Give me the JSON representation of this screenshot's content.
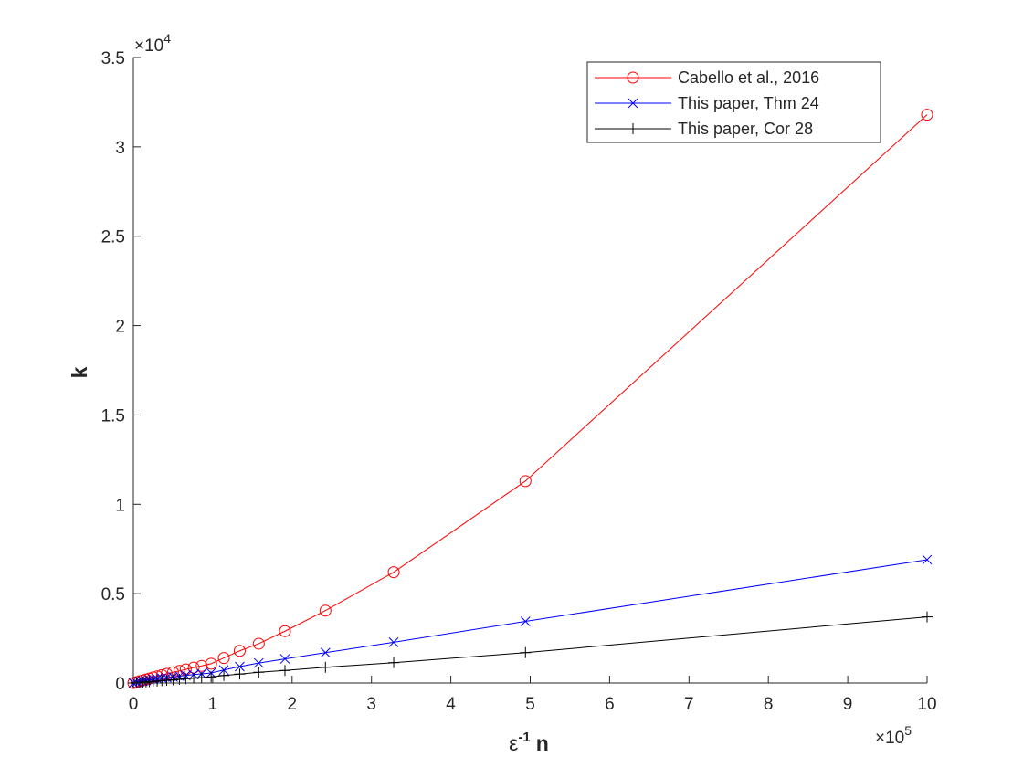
{
  "chart_data": {
    "type": "line",
    "title": "",
    "xlabel": "n",
    "xlabel_prefix": "ε",
    "xlabel_superscript": "-1",
    "ylabel": "k",
    "xlim": [
      0,
      1000000
    ],
    "ylim": [
      0,
      35000
    ],
    "x_multiplier": {
      "base": "×10",
      "exp": "5"
    },
    "y_multiplier": {
      "base": "×10",
      "exp": "4"
    },
    "x_ticks": [
      0,
      100000,
      200000,
      300000,
      400000,
      500000,
      600000,
      700000,
      800000,
      900000,
      1000000
    ],
    "x_tick_labels": [
      "0",
      "1",
      "2",
      "3",
      "4",
      "5",
      "6",
      "7",
      "8",
      "9",
      "10"
    ],
    "y_ticks": [
      0,
      5000,
      10000,
      15000,
      20000,
      25000,
      30000,
      35000
    ],
    "y_tick_labels": [
      "0",
      "0.5",
      "1",
      "1.5",
      "2",
      "2.5",
      "3",
      "3.5"
    ],
    "grid": false,
    "legend_position": "top-right",
    "series": [
      {
        "name": "Cabello et al., 2016",
        "color": "#ff0000",
        "marker": "circle",
        "x": [
          0,
          4000,
          8000,
          12000,
          16000,
          20000,
          25000,
          30000,
          36000,
          42000,
          50000,
          58000,
          66000,
          76000,
          86000,
          98000,
          114000,
          134000,
          158000,
          191000,
          242000,
          328000,
          494000,
          1000000
        ],
        "y": [
          0,
          50,
          100,
          150,
          200,
          250,
          310,
          370,
          440,
          510,
          600,
          680,
          760,
          860,
          960,
          1080,
          1400,
          1800,
          2200,
          2900,
          4050,
          6200,
          11300,
          31800
        ]
      },
      {
        "name": "This paper, Thm 24",
        "color": "#0000ff",
        "marker": "x",
        "x": [
          0,
          4000,
          8000,
          12000,
          16000,
          20000,
          25000,
          30000,
          36000,
          42000,
          50000,
          58000,
          66000,
          76000,
          86000,
          98000,
          114000,
          134000,
          158000,
          191000,
          242000,
          328000,
          494000,
          1000000
        ],
        "y": [
          0,
          40,
          80,
          110,
          140,
          170,
          200,
          230,
          270,
          300,
          340,
          380,
          420,
          470,
          510,
          560,
          730,
          920,
          1120,
          1350,
          1700,
          2280,
          3450,
          6900
        ]
      },
      {
        "name": "This paper, Cor 28",
        "color": "#000000",
        "marker": "plus",
        "x": [
          0,
          4000,
          8000,
          12000,
          16000,
          20000,
          25000,
          30000,
          36000,
          42000,
          50000,
          58000,
          66000,
          76000,
          86000,
          98000,
          114000,
          134000,
          158000,
          191000,
          242000,
          328000,
          494000,
          1000000
        ],
        "y": [
          0,
          15,
          30,
          45,
          60,
          75,
          90,
          110,
          130,
          150,
          180,
          210,
          240,
          270,
          300,
          340,
          420,
          500,
          600,
          700,
          880,
          1140,
          1700,
          3700
        ]
      }
    ]
  }
}
